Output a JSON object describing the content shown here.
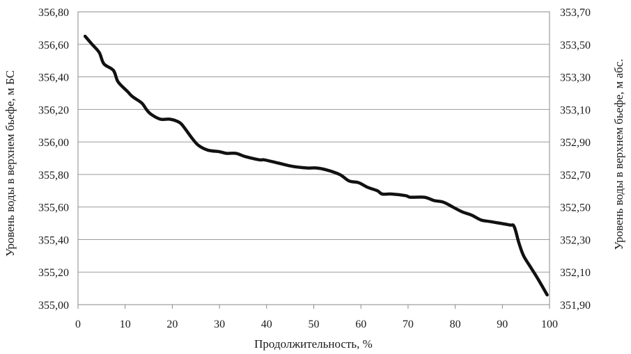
{
  "chart_data": {
    "type": "line",
    "xlabel": "Продолжительность, %",
    "ylabel": "Уровень воды в верхнем бьефе, м БС",
    "y2label": "Уровень воды в верхнем бьефе, м  абс.",
    "xlim": [
      0,
      100
    ],
    "ylim": [
      355.0,
      356.8
    ],
    "y2lim": [
      351.9,
      353.7
    ],
    "x_ticks": [
      "0",
      "10",
      "20",
      "30",
      "40",
      "50",
      "60",
      "70",
      "80",
      "90",
      "100"
    ],
    "y_ticks": [
      "355,00",
      "355,20",
      "355,40",
      "355,60",
      "355,80",
      "356,00",
      "356,20",
      "356,40",
      "356,60",
      "356,80"
    ],
    "y2_ticks": [
      "351,90",
      "352,10",
      "352,30",
      "352,50",
      "352,70",
      "352,90",
      "353,10",
      "353,30",
      "353,50",
      "353,70"
    ],
    "grid": "horizontal",
    "series": [
      {
        "color": "#111111",
        "x": [
          1.5,
          3.0,
          4.5,
          5.5,
          7.5,
          8.5,
          10.5,
          11.5,
          13.5,
          14.5,
          15.5,
          17.5,
          19.5,
          21.5,
          22.5,
          24.0,
          25.5,
          27.5,
          30.0,
          31.5,
          33.5,
          35.5,
          38.5,
          39.5,
          42.5,
          45.5,
          48.5,
          50.5,
          52.5,
          55.5,
          57.5,
          59.5,
          61.5,
          63.5,
          64.5,
          66.5,
          69.5,
          70.5,
          73.5,
          75.5,
          77.5,
          79.5,
          81.5,
          83.5,
          85.5,
          87.5,
          91.5,
          92.5,
          93.5,
          94.5,
          96.0,
          97.5,
          99.5
        ],
        "values": [
          356.65,
          356.6,
          356.55,
          356.48,
          356.44,
          356.37,
          356.31,
          356.28,
          356.24,
          356.2,
          356.17,
          356.14,
          356.14,
          356.12,
          356.09,
          356.03,
          355.98,
          355.95,
          355.94,
          355.93,
          355.93,
          355.91,
          355.89,
          355.89,
          355.87,
          355.85,
          355.84,
          355.84,
          355.83,
          355.8,
          355.76,
          355.75,
          355.72,
          355.7,
          355.68,
          355.68,
          355.67,
          355.66,
          355.66,
          355.64,
          355.63,
          355.6,
          355.57,
          355.55,
          355.52,
          355.51,
          355.49,
          355.48,
          355.38,
          355.3,
          355.23,
          355.16,
          355.06
        ]
      }
    ]
  }
}
